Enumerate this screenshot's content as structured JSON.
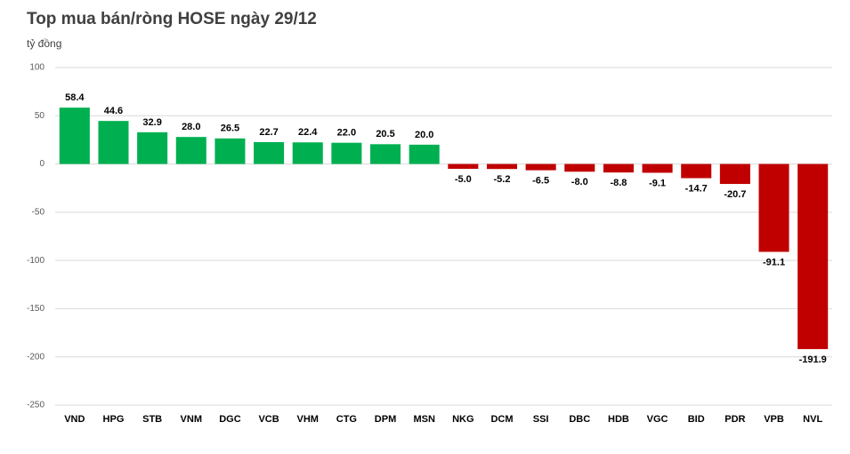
{
  "chart_data": {
    "type": "bar",
    "title": "Top mua bán/ròng HOSE ngày 29/12",
    "y_axis_label": "tỷ đồng",
    "categories": [
      "VND",
      "HPG",
      "STB",
      "VNM",
      "DGC",
      "VCB",
      "VHM",
      "CTG",
      "DPM",
      "MSN",
      "NKG",
      "DCM",
      "SSI",
      "DBC",
      "HDB",
      "VGC",
      "BID",
      "PDR",
      "VPB",
      "NVL"
    ],
    "values": [
      58.4,
      44.6,
      32.9,
      28.0,
      26.5,
      22.7,
      22.4,
      22.0,
      20.5,
      20.0,
      -5.0,
      -5.2,
      -6.5,
      -8.0,
      -8.8,
      -9.1,
      -14.7,
      -20.7,
      -91.1,
      -191.9
    ],
    "value_labels": [
      "58.4",
      "44.6",
      "32.9",
      "28.0",
      "26.5",
      "22.7",
      "22.4",
      "22.0",
      "20.5",
      "20.0",
      "-5.0",
      "-5.2",
      "-6.5",
      "-8.0",
      "-8.8",
      "-9.1",
      "-14.7",
      "-20.7",
      "-91.1",
      "-191.9"
    ],
    "positive_color": "#00b050",
    "negative_color": "#c00000",
    "ylim": [
      -250,
      100
    ],
    "yticks": [
      100,
      50,
      0,
      -50,
      -100,
      -150,
      -200,
      -250
    ],
    "grid": true
  }
}
